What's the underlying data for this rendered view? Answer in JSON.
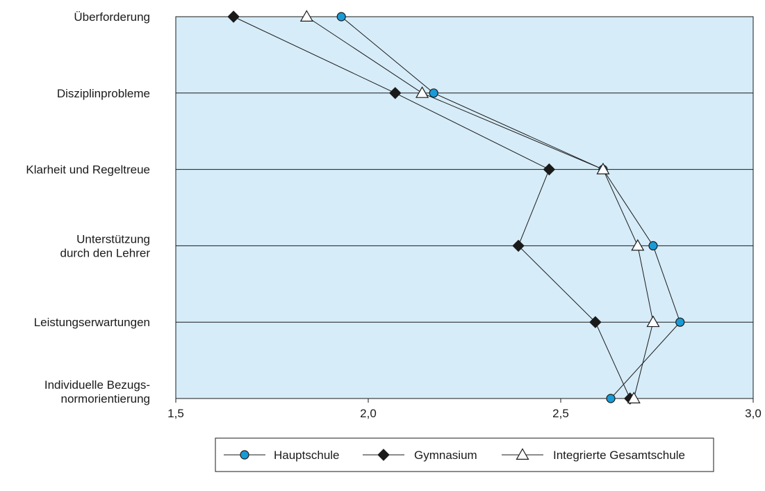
{
  "chart_data": {
    "type": "line",
    "orientation": "horizontal-values",
    "categories": [
      [
        "Überforderung"
      ],
      [
        "Disziplinprobleme"
      ],
      [
        "Klarheit und Regeltreue"
      ],
      [
        "Unterstützung",
        "durch den Lehrer"
      ],
      [
        "Leistungserwartungen"
      ],
      [
        "Individuelle Bezugs-",
        "normorientierung"
      ]
    ],
    "xlim": [
      1.5,
      3.0
    ],
    "xticks": [
      "1,5",
      "2,0",
      "2,5",
      "3,0"
    ],
    "xtick_values": [
      1.5,
      2.0,
      2.5,
      3.0
    ],
    "grid": true,
    "plot_background": "#d6ecf8",
    "legend_position": "bottom",
    "series": [
      {
        "name": "Hauptschule",
        "marker": "circle",
        "color": "#1a9ad6",
        "values": [
          1.93,
          2.17,
          2.61,
          2.74,
          2.81,
          2.63
        ]
      },
      {
        "name": "Gymnasium",
        "marker": "diamond",
        "color": "#1a1a1a",
        "values": [
          1.65,
          2.07,
          2.47,
          2.39,
          2.59,
          2.68
        ]
      },
      {
        "name": "Integrierte Gesamtschule",
        "marker": "triangle",
        "color": "#ffffff",
        "values": [
          1.84,
          2.14,
          2.61,
          2.7,
          2.74,
          2.69
        ]
      }
    ]
  }
}
